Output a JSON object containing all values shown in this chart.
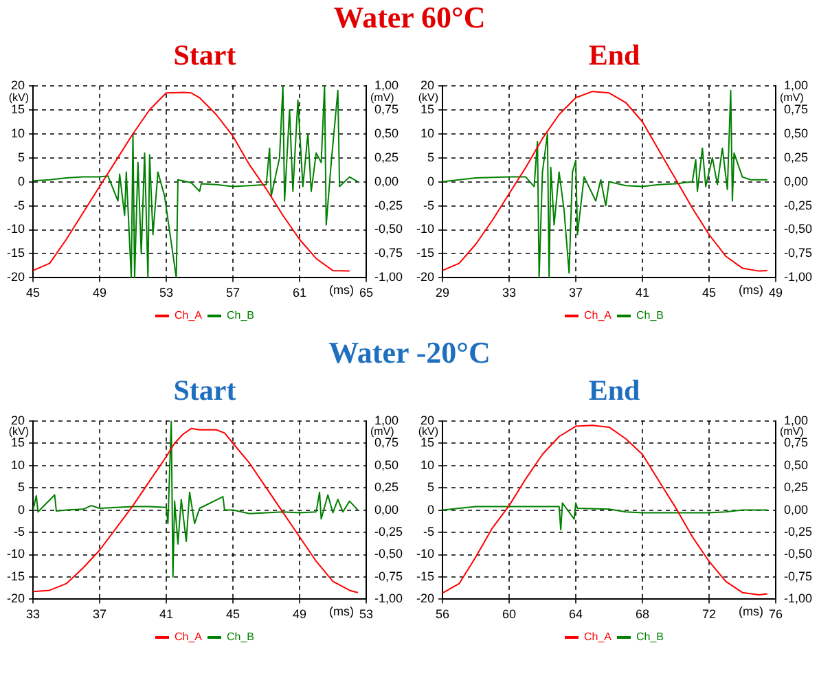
{
  "chart_data": [
    {
      "type": "line",
      "title": "Start",
      "annotations": [
        "Water 60°C"
      ],
      "xlabel": "(ms)",
      "ylabel": "(kV)",
      "y2label": "(mV)",
      "xlim": [
        45,
        65
      ],
      "xticks": [
        45,
        49,
        53,
        57,
        61,
        65
      ],
      "ylim": [
        -20,
        20
      ],
      "yticks": [
        -20,
        -15,
        -10,
        -5,
        0,
        5,
        10,
        15,
        20
      ],
      "y2lim": [
        -1,
        1
      ],
      "y2ticks": [
        {
          "value": -1,
          "label": "-1,00"
        },
        {
          "value": -0.75,
          "label": "-0,75"
        },
        {
          "value": -0.5,
          "label": "-0,50"
        },
        {
          "value": -0.25,
          "label": "-0,25"
        },
        {
          "value": 0,
          "label": "0,00"
        },
        {
          "value": 0.25,
          "label": "0,25"
        },
        {
          "value": 0.5,
          "label": "0,50"
        },
        {
          "value": 0.75,
          "label": "0,75"
        },
        {
          "value": 1,
          "label": "1,00"
        }
      ],
      "grid": true,
      "legend": "bottom",
      "marker": "none",
      "series": [
        {
          "name": "Ch_A",
          "color": "#ff0000",
          "x": [
            45,
            46,
            47,
            48,
            49,
            50,
            51,
            52,
            53,
            54,
            54.5,
            55,
            56,
            57,
            58,
            59,
            60,
            61,
            62,
            63,
            64
          ],
          "values": [
            -18.5,
            -17,
            -12,
            -6.5,
            -1,
            4.5,
            10,
            15,
            18.5,
            18.6,
            18.5,
            17.5,
            14,
            9.5,
            3.5,
            -1.5,
            -7,
            -12,
            -16,
            -18.5,
            -18.6
          ]
        },
        {
          "name": "Ch_B",
          "color": "#008000",
          "axis": "y2",
          "x": [
            45,
            46,
            47,
            48,
            49,
            49.5,
            50.1,
            50.2,
            50.5,
            50.6,
            50.9,
            51.0,
            51.1,
            51.3,
            51.5,
            51.7,
            51.9,
            52.0,
            52.2,
            52.5,
            52.9,
            53.6,
            53.7,
            54.5,
            55.0,
            55.1,
            56,
            57,
            58,
            59,
            59.2,
            59.3,
            59.8,
            60.0,
            60.1,
            60.4,
            60.6,
            60.9,
            61.2,
            61.5,
            61.7,
            62.0,
            62.3,
            62.5,
            62.6,
            62.9,
            63.3,
            63.4,
            64,
            64.5
          ],
          "values": [
            0.01,
            0.02,
            0.04,
            0.05,
            0.05,
            0.06,
            -0.2,
            0.08,
            -0.35,
            0.1,
            -1.0,
            0.5,
            -1.0,
            0.2,
            -0.75,
            0.3,
            -1.0,
            0.28,
            -0.55,
            0.1,
            -0.15,
            -1.0,
            0.02,
            -0.01,
            -0.1,
            -0.02,
            -0.03,
            -0.05,
            -0.04,
            -0.03,
            0.35,
            -0.15,
            0.25,
            1.0,
            -0.2,
            0.75,
            -0.1,
            0.85,
            -0.05,
            0.5,
            -0.1,
            0.3,
            0.2,
            1.0,
            -0.45,
            0.2,
            0.95,
            -0.05,
            0.05,
            0.0
          ]
        }
      ]
    },
    {
      "type": "line",
      "title": "End",
      "xlabel": "(ms)",
      "ylabel": "(kV)",
      "y2label": "(mV)",
      "xlim": [
        29,
        49
      ],
      "xticks": [
        29,
        33,
        37,
        41,
        45,
        49
      ],
      "ylim": [
        -20,
        20
      ],
      "yticks": [
        -20,
        -15,
        -10,
        -5,
        0,
        5,
        10,
        15,
        20
      ],
      "y2lim": [
        -1,
        1
      ],
      "y2ticks": [
        {
          "value": -1,
          "label": "-1,00"
        },
        {
          "value": -0.75,
          "label": "-0,75"
        },
        {
          "value": -0.5,
          "label": "-0,50"
        },
        {
          "value": -0.25,
          "label": "-0,25"
        },
        {
          "value": 0,
          "label": "0,00"
        },
        {
          "value": 0.25,
          "label": "0,25"
        },
        {
          "value": 0.5,
          "label": "0,50"
        },
        {
          "value": 0.75,
          "label": "0,75"
        },
        {
          "value": 1,
          "label": "1,00"
        }
      ],
      "grid": true,
      "legend": "bottom",
      "marker": "none",
      "series": [
        {
          "name": "Ch_A",
          "color": "#ff0000",
          "x": [
            29,
            30,
            31,
            32,
            33,
            34,
            35,
            36,
            37,
            38,
            39,
            40,
            41,
            42,
            43,
            44,
            45,
            46,
            47,
            48,
            48.5
          ],
          "values": [
            -18.5,
            -17,
            -13,
            -8,
            -2.5,
            3,
            9,
            14,
            17.5,
            18.8,
            18.5,
            16.5,
            12.5,
            6.5,
            0.5,
            -5.5,
            -11,
            -15.5,
            -18,
            -18.6,
            -18.5
          ]
        },
        {
          "name": "Ch_B",
          "color": "#008000",
          "axis": "y2",
          "x": [
            29,
            31,
            33,
            34,
            34.5,
            34.7,
            34.8,
            35,
            35.3,
            35.4,
            35.5,
            35.7,
            36,
            36.3,
            36.6,
            36.8,
            37.0,
            37.1,
            37.5,
            38.2,
            38.5,
            38.8,
            39,
            40,
            41,
            42,
            43,
            44,
            44.2,
            44.3,
            44.6,
            44.8,
            45.2,
            45.5,
            45.8,
            46.1,
            46.3,
            46.4,
            46.5,
            47,
            47.5,
            48.5
          ],
          "values": [
            0.0,
            0.04,
            0.05,
            0.05,
            -0.05,
            0.42,
            -1.0,
            0.1,
            0.5,
            -1.0,
            0.15,
            -0.45,
            0.1,
            -0.3,
            -0.95,
            0.1,
            0.22,
            -0.55,
            0.05,
            -0.2,
            0.02,
            -0.25,
            0.0,
            -0.04,
            -0.05,
            -0.03,
            -0.02,
            0.0,
            0.23,
            -0.1,
            0.35,
            -0.05,
            0.25,
            -0.03,
            0.35,
            -0.08,
            0.95,
            -0.2,
            0.3,
            0.05,
            0.02,
            0.02
          ]
        }
      ]
    },
    {
      "type": "line",
      "title": "Start",
      "annotations": [
        "Water -20°C"
      ],
      "xlabel": "(ms)",
      "ylabel": "(kV)",
      "y2label": "(mV)",
      "xlim": [
        33,
        53
      ],
      "xticks": [
        33,
        37,
        41,
        45,
        49,
        53
      ],
      "ylim": [
        -20,
        20
      ],
      "yticks": [
        -20,
        -15,
        -10,
        -5,
        0,
        5,
        10,
        15,
        20
      ],
      "y2lim": [
        -1,
        1
      ],
      "y2ticks": [
        {
          "value": -1,
          "label": "-1,00"
        },
        {
          "value": -0.75,
          "label": "-0,75"
        },
        {
          "value": -0.5,
          "label": "-0,50"
        },
        {
          "value": -0.25,
          "label": "-0,25"
        },
        {
          "value": 0,
          "label": "0,00"
        },
        {
          "value": 0.25,
          "label": "0,25"
        },
        {
          "value": 0.5,
          "label": "0,50"
        },
        {
          "value": 0.75,
          "label": "0,75"
        },
        {
          "value": 1,
          "label": "1,00"
        }
      ],
      "grid": true,
      "legend": "bottom",
      "marker": "none",
      "series": [
        {
          "name": "Ch_A",
          "color": "#ff0000",
          "x": [
            33,
            34,
            35,
            36,
            37,
            38,
            39,
            40,
            41,
            41.5,
            42,
            42.5,
            43,
            44,
            44.5,
            45,
            46,
            47,
            48,
            49,
            50,
            51,
            52,
            52.5
          ],
          "values": [
            -18.3,
            -18,
            -16.5,
            -13,
            -9,
            -4,
            1,
            6.5,
            12,
            15,
            17,
            18.3,
            18,
            18,
            17.3,
            15,
            10.5,
            5,
            -0.5,
            -6,
            -11.5,
            -16,
            -18,
            -18.5
          ]
        },
        {
          "name": "Ch_B",
          "color": "#008000",
          "axis": "y2",
          "x": [
            33,
            33.2,
            33.3,
            34.3,
            34.4,
            35,
            36,
            36.5,
            37,
            38,
            39,
            40,
            41,
            41.1,
            41.3,
            41.4,
            41.5,
            41.7,
            41.9,
            42.2,
            42.4,
            42.7,
            43,
            44.4,
            44.5,
            45,
            46,
            47,
            48,
            49,
            50,
            50.2,
            50.3,
            50.7,
            51,
            51.3,
            51.6,
            52,
            52.5
          ],
          "values": [
            0.0,
            0.16,
            -0.02,
            0.17,
            -0.01,
            0.0,
            0.01,
            0.05,
            0.02,
            0.03,
            0.04,
            0.04,
            0.03,
            -0.15,
            1.0,
            -0.75,
            0.1,
            -0.38,
            0.12,
            -0.35,
            0.2,
            -0.15,
            0.02,
            0.15,
            0.0,
            0.0,
            -0.04,
            -0.03,
            -0.02,
            -0.03,
            -0.02,
            0.2,
            -0.1,
            0.17,
            -0.03,
            0.12,
            -0.02,
            0.1,
            0.0
          ]
        }
      ]
    },
    {
      "type": "line",
      "title": "End",
      "xlabel": "(ms)",
      "ylabel": "(kV)",
      "y2label": "(mV)",
      "xlim": [
        56,
        76
      ],
      "xticks": [
        56,
        60,
        64,
        68,
        72,
        76
      ],
      "ylim": [
        -20,
        20
      ],
      "yticks": [
        -20,
        -15,
        -10,
        -5,
        0,
        5,
        10,
        15,
        20
      ],
      "y2lim": [
        -1,
        1
      ],
      "y2ticks": [
        {
          "value": -1,
          "label": "-1,00"
        },
        {
          "value": -0.75,
          "label": "-0,75"
        },
        {
          "value": -0.5,
          "label": "-0,50"
        },
        {
          "value": -0.25,
          "label": "-0,25"
        },
        {
          "value": 0,
          "label": "0,00"
        },
        {
          "value": 0.25,
          "label": "0,25"
        },
        {
          "value": 0.5,
          "label": "0,50"
        },
        {
          "value": 0.75,
          "label": "0,75"
        },
        {
          "value": 1,
          "label": "1,00"
        }
      ],
      "grid": true,
      "legend": "bottom",
      "marker": "none",
      "series": [
        {
          "name": "Ch_A",
          "color": "#ff0000",
          "x": [
            56,
            57,
            58,
            59,
            60,
            61,
            62,
            63,
            64,
            65,
            66,
            67,
            68,
            69,
            70,
            71,
            72,
            73,
            74,
            75,
            75.5
          ],
          "values": [
            -18.6,
            -16.5,
            -10.5,
            -4,
            1,
            7,
            12.5,
            16.5,
            18.8,
            19,
            18.6,
            16,
            12.5,
            6.5,
            0.5,
            -6,
            -11.5,
            -16,
            -18.5,
            -19,
            -18.8
          ]
        },
        {
          "name": "Ch_B",
          "color": "#008000",
          "axis": "y2",
          "x": [
            56,
            58,
            60,
            62,
            63,
            63.1,
            63.2,
            63.9,
            64.0,
            64.1,
            66,
            67,
            68,
            70,
            72,
            73,
            74,
            75.5
          ],
          "values": [
            0.0,
            0.04,
            0.04,
            0.04,
            0.04,
            -0.22,
            0.08,
            -0.1,
            0.08,
            0.02,
            0.01,
            -0.02,
            -0.03,
            -0.03,
            -0.03,
            -0.02,
            0.0,
            0.0
          ]
        }
      ]
    }
  ]
}
